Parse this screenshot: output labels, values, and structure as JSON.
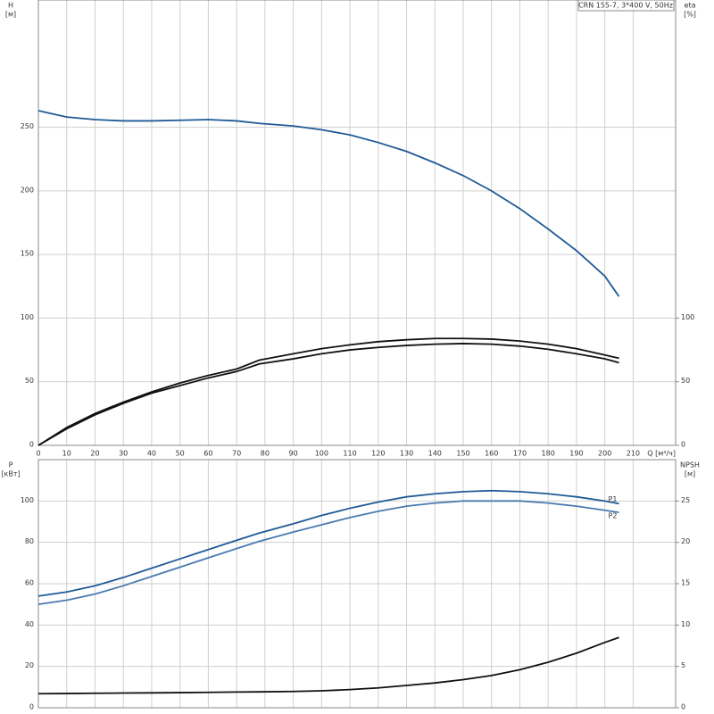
{
  "chart_data": [
    {
      "type": "line",
      "annotation": "CRN 155-7, 3*400 V, 50Hz",
      "ylabel": "H",
      "yunit": "[м]",
      "y2label": "eta",
      "y2unit": "[%]",
      "xlabel": "Q [м³/ч]",
      "x": [
        0,
        10,
        20,
        30,
        40,
        50,
        60,
        70,
        78,
        90,
        100,
        110,
        120,
        130,
        140,
        150,
        160,
        170,
        180,
        190,
        200,
        205
      ],
      "xlim": [
        0,
        225
      ],
      "xticks": [
        0,
        10,
        20,
        30,
        40,
        50,
        60,
        70,
        80,
        90,
        100,
        110,
        120,
        130,
        140,
        150,
        160,
        170,
        180,
        190,
        200,
        210
      ],
      "ylim": [
        0,
        350
      ],
      "yticks": [
        0,
        50,
        100,
        150,
        200,
        250
      ],
      "y2lim": [
        0,
        350
      ],
      "y2ticks": [
        0,
        50,
        100
      ],
      "grid": true,
      "series": [
        {
          "color": "#1f5a96",
          "values": [
            263,
            258,
            256,
            255,
            255,
            255.5,
            256,
            255,
            253,
            251,
            248,
            244,
            238,
            231,
            222,
            212,
            200,
            186,
            170,
            153,
            133,
            117
          ]
        },
        {
          "color": "#111111",
          "axis": "y2",
          "values": [
            0,
            14,
            25,
            34,
            42,
            49,
            55,
            60,
            67,
            72,
            76,
            79,
            81.5,
            83,
            84,
            84,
            83.5,
            82,
            79.5,
            76,
            71,
            68.5
          ]
        },
        {
          "color": "#111111",
          "axis": "y2",
          "values": [
            0,
            13,
            24,
            33,
            41,
            47,
            53,
            58,
            64,
            68,
            72,
            75,
            77,
            78.5,
            79.5,
            80,
            79.5,
            78,
            75.5,
            72,
            68,
            65
          ]
        }
      ]
    },
    {
      "type": "line",
      "ylabel": "P",
      "yunit": "[кВт]",
      "y2label": "NPSH",
      "y2unit": "[м]",
      "x": [
        0,
        10,
        20,
        30,
        40,
        50,
        60,
        70,
        78,
        90,
        100,
        110,
        120,
        130,
        140,
        150,
        160,
        170,
        180,
        190,
        200,
        205
      ],
      "xlim": [
        0,
        225
      ],
      "ylim": [
        0,
        120
      ],
      "yticks": [
        0,
        20,
        40,
        60,
        80,
        100
      ],
      "y2lim": [
        0,
        30
      ],
      "y2ticks": [
        0,
        5,
        10,
        15,
        20,
        25
      ],
      "grid": true,
      "series": [
        {
          "name": "P1",
          "color": "#1f5a96",
          "values": [
            54,
            56,
            59,
            63,
            67.5,
            72,
            76.5,
            81,
            84.5,
            89,
            93,
            96.5,
            99.5,
            102,
            103.5,
            104.5,
            105,
            104.5,
            103.5,
            102,
            100,
            98.7
          ]
        },
        {
          "name": "P2",
          "color": "#4a7ab0",
          "values": [
            50,
            52,
            55,
            59,
            63.5,
            68,
            72.5,
            77,
            80.5,
            85,
            88.5,
            92,
            95,
            97.5,
            99,
            100,
            100,
            100,
            99,
            97.5,
            95.5,
            94.5
          ]
        },
        {
          "color": "#111111",
          "axis": "y2",
          "values": [
            1.7,
            1.72,
            1.75,
            1.78,
            1.8,
            1.83,
            1.86,
            1.9,
            1.92,
            1.97,
            2.05,
            2.2,
            2.4,
            2.7,
            3.0,
            3.4,
            3.9,
            4.6,
            5.5,
            6.6,
            7.9,
            8.5
          ]
        }
      ]
    }
  ]
}
